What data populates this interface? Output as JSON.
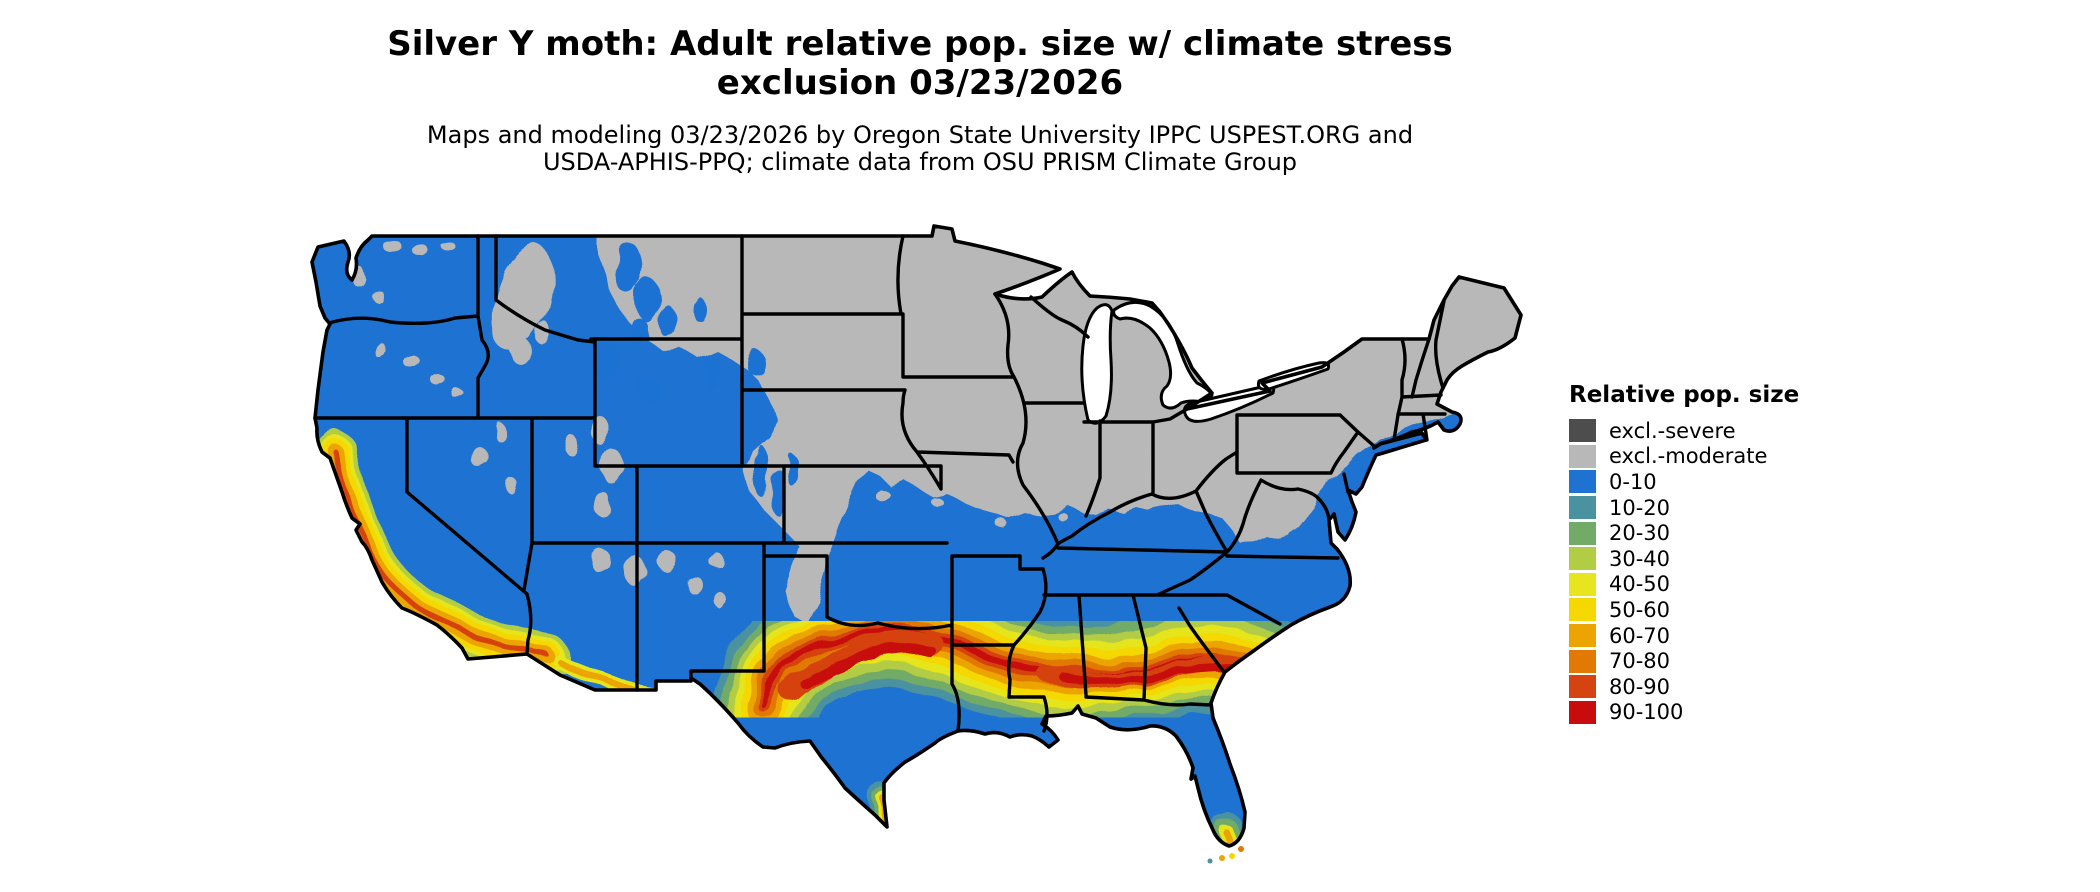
{
  "header": {
    "title_line1": "Silver Y moth: Adult relative pop. size w/ climate stress",
    "title_line2": "exclusion 03/23/2026",
    "subtitle_line1": "Maps and modeling 03/23/2026 by Oregon State University IPPC USPEST.ORG and",
    "subtitle_line2": "USDA-APHIS-PPQ; climate data from OSU PRISM Climate Group"
  },
  "legend": {
    "title": "Relative pop. size",
    "entries": [
      {
        "label": "excl.-severe",
        "color": "#4d4d4d"
      },
      {
        "label": "excl.-moderate",
        "color": "#b8b8b8"
      },
      {
        "label": "0-10",
        "color": "#1d72d2"
      },
      {
        "label": "10-20",
        "color": "#4b92a1"
      },
      {
        "label": "20-30",
        "color": "#72ab68"
      },
      {
        "label": "30-40",
        "color": "#b2cc44"
      },
      {
        "label": "40-50",
        "color": "#e6e51e"
      },
      {
        "label": "50-60",
        "color": "#f4d800"
      },
      {
        "label": "60-70",
        "color": "#eca400"
      },
      {
        "label": "70-80",
        "color": "#e17902"
      },
      {
        "label": "80-90",
        "color": "#d54310"
      },
      {
        "label": "90-100",
        "color": "#c80b0b"
      }
    ]
  },
  "map": {
    "region": "Contiguous United States",
    "kind": "raster choropleth of adult relative population size",
    "border_color": "#000000",
    "water_color": "#ffffff"
  },
  "chart_data": {
    "type": "heatmap",
    "title": "Silver Y moth: Adult relative pop. size w/ climate stress exclusion 03/23/2026",
    "legend_title": "Relative pop. size",
    "classes": [
      "excl.-severe",
      "excl.-moderate",
      "0-10",
      "10-20",
      "20-30",
      "30-40",
      "40-50",
      "50-60",
      "60-70",
      "70-80",
      "80-90",
      "90-100"
    ],
    "class_colors": [
      "#4d4d4d",
      "#b8b8b8",
      "#1d72d2",
      "#4b92a1",
      "#72ab68",
      "#b2cc44",
      "#e6e51e",
      "#f4d800",
      "#eca400",
      "#e17902",
      "#d54310",
      "#c80b0b"
    ],
    "regional_pattern": {
      "northern_tier_and_northeast": "excl.-moderate (gray)",
      "pacific_northwest_great_basin_mid_latitudes": "0-10 (blue)",
      "california_central_valley_and_coast_ranges": "40-90 band (yellow-orange with red streaks)",
      "southern_band_west_texas_to_south_carolina": "50-100 core (orange-red) ringed by 10-50",
      "south_texas_gulf_coast_florida_peninsula": "0-10 (blue)",
      "south_florida_tip_and_keys": "10-70 (teal-green-yellow-orange)"
    }
  }
}
